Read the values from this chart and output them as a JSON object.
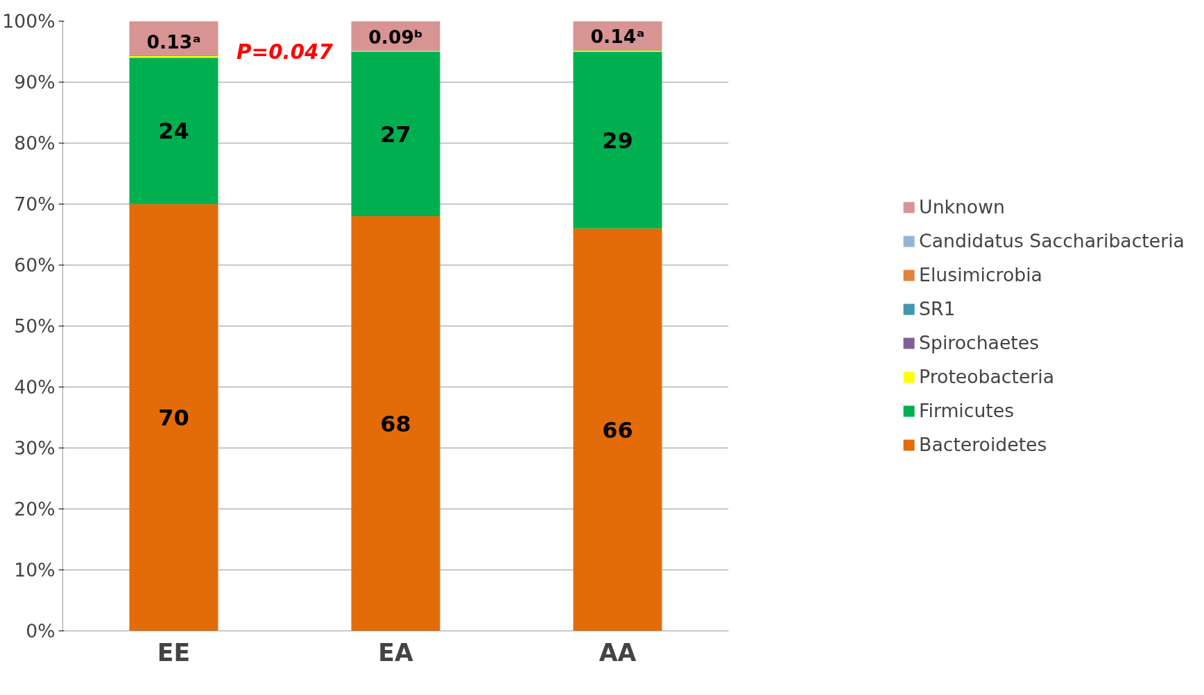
{
  "chart_data": {
    "type": "bar",
    "stacked": true,
    "categories": [
      "EE",
      "EA",
      "AA"
    ],
    "series": [
      {
        "name": "Bacteroidetes",
        "color": "#e36c09",
        "values": [
          70,
          68,
          66
        ],
        "value_labels": [
          "70",
          "68",
          "66"
        ]
      },
      {
        "name": "Firmicutes",
        "color": "#00b050",
        "values": [
          24,
          27,
          29
        ],
        "value_labels": [
          "24",
          "27",
          "29"
        ]
      },
      {
        "name": "Proteobacteria",
        "color": "#ffff00",
        "values": [
          0.3,
          0.1,
          0.2
        ]
      },
      {
        "name": "Spirochaetes",
        "color": "#7f5f9a",
        "values": [
          0.13,
          0.09,
          0.14
        ],
        "value_labels": [
          "0.13ᵃ",
          "0.09ᵇ",
          "0.14ᵃ"
        ]
      },
      {
        "name": "SR1",
        "color": "#4198af",
        "values": [
          0,
          0,
          0
        ]
      },
      {
        "name": "Elusimicrobia",
        "color": "#e0843f",
        "values": [
          0,
          0,
          0
        ]
      },
      {
        "name": "Candidatus Saccharibacteria",
        "color": "#95b3d7",
        "values": [
          0,
          0,
          0
        ]
      },
      {
        "name": "Unknown",
        "color": "#d79493",
        "values": [
          5.6,
          4.8,
          4.7
        ]
      }
    ],
    "ylim": [
      0,
      100
    ],
    "yticks": [
      {
        "value": 0,
        "label": "0%"
      },
      {
        "value": 10,
        "label": "10%"
      },
      {
        "value": 20,
        "label": "20%"
      },
      {
        "value": 30,
        "label": "30%"
      },
      {
        "value": 40,
        "label": "40%"
      },
      {
        "value": 50,
        "label": "50%"
      },
      {
        "value": 60,
        "label": "60%"
      },
      {
        "value": 70,
        "label": "70%"
      },
      {
        "value": 80,
        "label": "80%"
      },
      {
        "value": 90,
        "label": "90%"
      },
      {
        "value": 100,
        "label": "100%"
      }
    ],
    "grid": "y",
    "legend": "right",
    "annotations": [
      "P=0.047"
    ]
  }
}
